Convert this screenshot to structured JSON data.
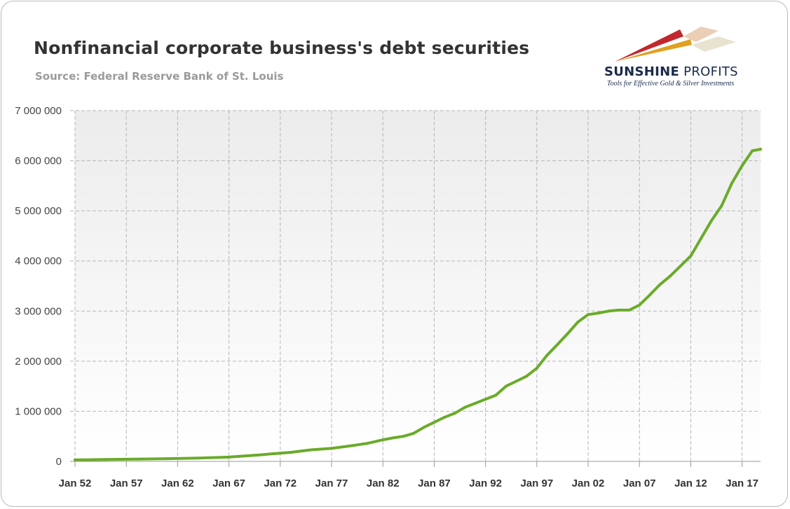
{
  "chart_data": {
    "type": "line",
    "title": "Nonfinancial corporate business's debt securities",
    "subtitle": "Source: Federal Reserve Bank of St. Louis",
    "xlabel": "",
    "ylabel": "",
    "ylim": [
      0,
      7000000
    ],
    "y_ticks": [
      "0",
      "1 000 000",
      "2 000 000",
      "3 000 000",
      "4 000 000",
      "5 000 000",
      "6 000 000",
      "7 000 000"
    ],
    "x_ticks": [
      "Jan 52",
      "Jan 57",
      "Jan 62",
      "Jan 67",
      "Jan 72",
      "Jan 77",
      "Jan 82",
      "Jan 87",
      "Jan 92",
      "Jan 97",
      "Jan 02",
      "Jan 07",
      "Jan 12",
      "Jan 17"
    ],
    "x_range": [
      1952,
      2018.8
    ],
    "grid": true,
    "legend": "none",
    "series": [
      {
        "color": "#6aab2a",
        "points": [
          [
            1952.0,
            30000
          ],
          [
            1955.0,
            38000
          ],
          [
            1958.0,
            45000
          ],
          [
            1961.0,
            55000
          ],
          [
            1964.0,
            65000
          ],
          [
            1967.0,
            85000
          ],
          [
            1968.0,
            100000
          ],
          [
            1970.0,
            130000
          ],
          [
            1972.0,
            165000
          ],
          [
            1973.0,
            180000
          ],
          [
            1975.0,
            230000
          ],
          [
            1977.0,
            260000
          ],
          [
            1979.0,
            315000
          ],
          [
            1980.5,
            360000
          ],
          [
            1982.0,
            430000
          ],
          [
            1983.0,
            470000
          ],
          [
            1984.0,
            500000
          ],
          [
            1985.0,
            560000
          ],
          [
            1986.0,
            680000
          ],
          [
            1987.0,
            780000
          ],
          [
            1988.0,
            880000
          ],
          [
            1989.0,
            960000
          ],
          [
            1990.0,
            1080000
          ],
          [
            1991.0,
            1160000
          ],
          [
            1992.0,
            1240000
          ],
          [
            1993.0,
            1320000
          ],
          [
            1994.0,
            1500000
          ],
          [
            1995.0,
            1600000
          ],
          [
            1996.0,
            1700000
          ],
          [
            1997.0,
            1860000
          ],
          [
            1998.0,
            2120000
          ],
          [
            1999.0,
            2330000
          ],
          [
            2000.0,
            2550000
          ],
          [
            2001.0,
            2780000
          ],
          [
            2002.0,
            2930000
          ],
          [
            2003.0,
            2960000
          ],
          [
            2004.0,
            3000000
          ],
          [
            2005.0,
            3020000
          ],
          [
            2006.0,
            3020000
          ],
          [
            2007.0,
            3120000
          ],
          [
            2008.0,
            3320000
          ],
          [
            2009.0,
            3530000
          ],
          [
            2010.0,
            3700000
          ],
          [
            2011.0,
            3900000
          ],
          [
            2012.0,
            4100000
          ],
          [
            2013.0,
            4450000
          ],
          [
            2014.0,
            4800000
          ],
          [
            2015.0,
            5100000
          ],
          [
            2016.0,
            5550000
          ],
          [
            2017.0,
            5900000
          ],
          [
            2018.0,
            6200000
          ],
          [
            2018.8,
            6230000
          ]
        ]
      }
    ]
  },
  "logo": {
    "name_bold": "SUNSHINE",
    "name_rest": " PROFITS",
    "tagline": "Tools for Effective Gold & Silver Investments",
    "colors": {
      "red": "#c0282d",
      "gold": "#e0a020",
      "gray": "#c8c8c8"
    }
  }
}
